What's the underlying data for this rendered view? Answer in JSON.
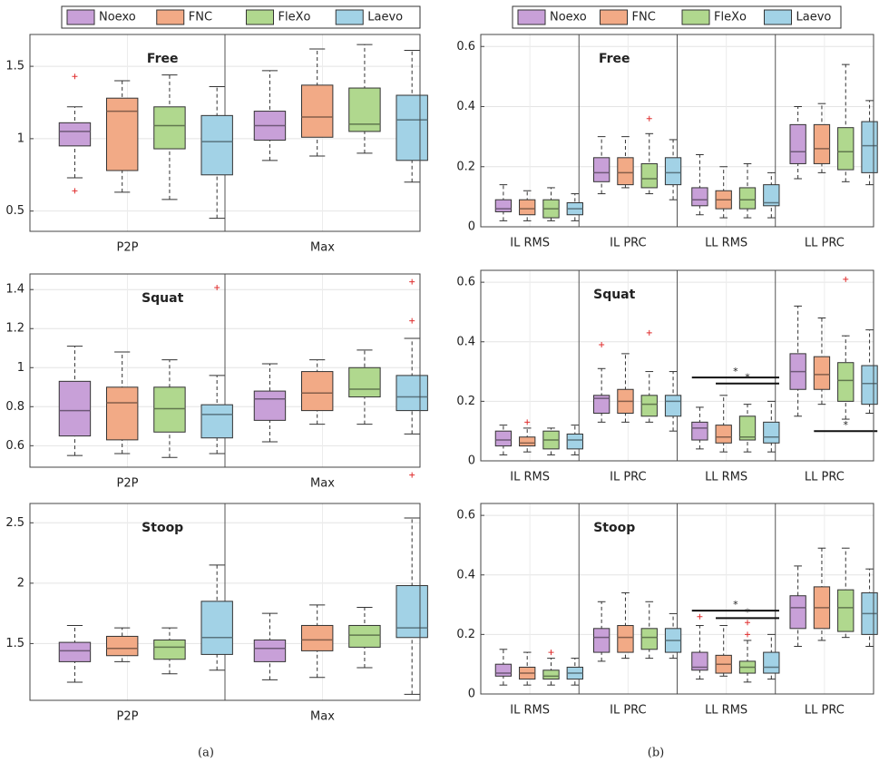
{
  "chart_data": [
    {
      "type": "box",
      "title": "Free",
      "categories": [
        "P2P",
        "Max"
      ],
      "ylim": [
        0.36,
        1.72
      ],
      "yticks": [
        0.5,
        1,
        1.5
      ],
      "grid": true,
      "series": [
        {
          "name": "Noexo",
          "color": "#c8a0d8",
          "boxes": [
            [
              0.73,
              0.95,
              1.05,
              1.11,
              1.22
            ],
            [
              0.85,
              0.99,
              1.09,
              1.19,
              1.47
            ]
          ],
          "fliers": [
            [
              1.43,
              0.64
            ],
            []
          ]
        },
        {
          "name": "FNC",
          "color": "#f2aa86",
          "boxes": [
            [
              0.63,
              0.78,
              1.19,
              1.28,
              1.4
            ],
            [
              0.88,
              1.01,
              1.15,
              1.37,
              1.62
            ]
          ],
          "fliers": [
            [],
            []
          ]
        },
        {
          "name": "FleXo",
          "color": "#b0d88e",
          "boxes": [
            [
              0.58,
              0.93,
              1.09,
              1.22,
              1.44
            ],
            [
              0.9,
              1.05,
              1.1,
              1.35,
              1.65
            ]
          ],
          "fliers": [
            [],
            []
          ]
        },
        {
          "name": "Laevo",
          "color": "#a2d2e6",
          "boxes": [
            [
              0.45,
              0.75,
              0.98,
              1.16,
              1.36
            ],
            [
              0.7,
              0.85,
              1.13,
              1.3,
              1.61
            ]
          ],
          "fliers": [
            [],
            []
          ]
        }
      ]
    },
    {
      "type": "box",
      "title": "Squat",
      "categories": [
        "P2P",
        "Max"
      ],
      "ylim": [
        0.49,
        1.48
      ],
      "yticks": [
        0.6,
        0.8,
        1,
        1.2,
        1.4
      ],
      "grid": true,
      "series": [
        {
          "color": "#c8a0d8",
          "boxes": [
            [
              0.55,
              0.65,
              0.78,
              0.93,
              1.11
            ],
            [
              0.62,
              0.73,
              0.84,
              0.88,
              1.02
            ]
          ],
          "fliers": [
            [],
            []
          ]
        },
        {
          "color": "#f2aa86",
          "boxes": [
            [
              0.56,
              0.63,
              0.82,
              0.9,
              1.08
            ],
            [
              0.71,
              0.78,
              0.87,
              0.98,
              1.04
            ]
          ],
          "fliers": [
            [],
            []
          ]
        },
        {
          "color": "#b0d88e",
          "boxes": [
            [
              0.54,
              0.67,
              0.79,
              0.9,
              1.04
            ],
            [
              0.71,
              0.85,
              0.89,
              1.0,
              1.09
            ]
          ],
          "fliers": [
            [],
            []
          ]
        },
        {
          "color": "#a2d2e6",
          "boxes": [
            [
              0.56,
              0.64,
              0.76,
              0.81,
              0.96
            ],
            [
              0.66,
              0.78,
              0.85,
              0.96,
              1.15
            ]
          ],
          "fliers": [
            [
              1.41
            ],
            [
              1.44,
              1.24,
              0.45
            ]
          ]
        }
      ]
    },
    {
      "type": "box",
      "title": "Stoop",
      "categories": [
        "P2P",
        "Max"
      ],
      "ylim": [
        1.03,
        2.66
      ],
      "yticks": [
        1.5,
        2,
        2.5
      ],
      "grid": true,
      "series": [
        {
          "color": "#c8a0d8",
          "boxes": [
            [
              1.18,
              1.35,
              1.44,
              1.51,
              1.65
            ],
            [
              1.2,
              1.35,
              1.46,
              1.53,
              1.75
            ]
          ],
          "fliers": [
            [],
            []
          ]
        },
        {
          "color": "#f2aa86",
          "boxes": [
            [
              1.35,
              1.4,
              1.46,
              1.56,
              1.63
            ],
            [
              1.22,
              1.44,
              1.53,
              1.65,
              1.82
            ]
          ],
          "fliers": [
            [],
            []
          ]
        },
        {
          "color": "#b0d88e",
          "boxes": [
            [
              1.25,
              1.37,
              1.47,
              1.53,
              1.63
            ],
            [
              1.3,
              1.47,
              1.57,
              1.65,
              1.8
            ]
          ],
          "fliers": [
            [],
            []
          ]
        },
        {
          "color": "#a2d2e6",
          "boxes": [
            [
              1.28,
              1.41,
              1.55,
              1.85,
              2.15
            ],
            [
              1.08,
              1.55,
              1.63,
              1.98,
              2.54
            ]
          ],
          "fliers": [
            [],
            []
          ]
        }
      ]
    },
    {
      "type": "box",
      "title": "Free",
      "categories": [
        "IL RMS",
        "IL PRC",
        "LL RMS",
        "LL PRC"
      ],
      "ylim": [
        0,
        0.64
      ],
      "yticks": [
        0,
        0.2,
        0.4,
        0.6
      ],
      "grid": true,
      "series": [
        {
          "name": "Noexo",
          "color": "#c8a0d8",
          "boxes": [
            [
              0.02,
              0.05,
              0.06,
              0.09,
              0.14
            ],
            [
              0.11,
              0.15,
              0.18,
              0.23,
              0.3
            ],
            [
              0.04,
              0.07,
              0.09,
              0.13,
              0.24
            ],
            [
              0.16,
              0.21,
              0.25,
              0.34,
              0.4
            ]
          ],
          "fliers": [
            [],
            [],
            [],
            []
          ]
        },
        {
          "name": "FNC",
          "color": "#f2aa86",
          "boxes": [
            [
              0.02,
              0.04,
              0.06,
              0.09,
              0.12
            ],
            [
              0.13,
              0.14,
              0.18,
              0.23,
              0.3
            ],
            [
              0.03,
              0.06,
              0.09,
              0.12,
              0.2
            ],
            [
              0.18,
              0.21,
              0.26,
              0.34,
              0.41
            ]
          ],
          "fliers": [
            [],
            [],
            [],
            []
          ]
        },
        {
          "name": "FleXo",
          "color": "#b0d88e",
          "boxes": [
            [
              0.02,
              0.03,
              0.06,
              0.09,
              0.13
            ],
            [
              0.11,
              0.13,
              0.16,
              0.21,
              0.31
            ],
            [
              0.03,
              0.06,
              0.09,
              0.13,
              0.21
            ],
            [
              0.15,
              0.19,
              0.25,
              0.33,
              0.54
            ]
          ],
          "fliers": [
            [],
            [
              0.36
            ],
            [],
            []
          ]
        },
        {
          "name": "Laevo",
          "color": "#a2d2e6",
          "boxes": [
            [
              0.02,
              0.04,
              0.06,
              0.08,
              0.11
            ],
            [
              0.09,
              0.14,
              0.18,
              0.23,
              0.29
            ],
            [
              0.03,
              0.07,
              0.08,
              0.14,
              0.18
            ],
            [
              0.14,
              0.18,
              0.27,
              0.35,
              0.42
            ]
          ],
          "fliers": [
            [],
            [],
            [],
            []
          ]
        }
      ]
    },
    {
      "type": "box",
      "title": "Squat",
      "categories": [
        "IL RMS",
        "IL PRC",
        "LL RMS",
        "LL PRC"
      ],
      "ylim": [
        0,
        0.64
      ],
      "yticks": [
        0,
        0.2,
        0.4,
        0.6
      ],
      "grid": true,
      "series": [
        {
          "color": "#c8a0d8",
          "boxes": [
            [
              0.02,
              0.05,
              0.07,
              0.1,
              0.12
            ],
            [
              0.13,
              0.16,
              0.21,
              0.22,
              0.31
            ],
            [
              0.04,
              0.07,
              0.11,
              0.13,
              0.18
            ],
            [
              0.15,
              0.24,
              0.3,
              0.36,
              0.52
            ]
          ],
          "fliers": [
            [],
            [
              0.39
            ],
            [],
            []
          ]
        },
        {
          "color": "#f2aa86",
          "boxes": [
            [
              0.03,
              0.05,
              0.06,
              0.08,
              0.11
            ],
            [
              0.13,
              0.16,
              0.2,
              0.24,
              0.36
            ],
            [
              0.03,
              0.06,
              0.08,
              0.12,
              0.22
            ],
            [
              0.19,
              0.24,
              0.29,
              0.35,
              0.48
            ]
          ],
          "fliers": [
            [
              0.13
            ],
            [],
            [],
            []
          ]
        },
        {
          "color": "#b0d88e",
          "boxes": [
            [
              0.02,
              0.04,
              0.07,
              0.1,
              0.11
            ],
            [
              0.13,
              0.15,
              0.19,
              0.22,
              0.3
            ],
            [
              0.03,
              0.07,
              0.08,
              0.15,
              0.19
            ],
            [
              0.14,
              0.2,
              0.27,
              0.33,
              0.42
            ]
          ],
          "fliers": [
            [],
            [
              0.43
            ],
            [],
            [
              0.61
            ]
          ]
        },
        {
          "color": "#a2d2e6",
          "boxes": [
            [
              0.02,
              0.04,
              0.07,
              0.09,
              0.12
            ],
            [
              0.1,
              0.15,
              0.2,
              0.22,
              0.3
            ],
            [
              0.03,
              0.06,
              0.08,
              0.13,
              0.2
            ],
            [
              0.16,
              0.19,
              0.26,
              0.32,
              0.44
            ]
          ],
          "fliers": [
            [],
            [],
            [],
            []
          ]
        }
      ],
      "annotations": [
        {
          "label": "*",
          "category": 2,
          "from": 0,
          "to": 3,
          "y": 0.28
        },
        {
          "label": "*",
          "category": 2,
          "from": 1,
          "to": 3,
          "y": 0.26
        },
        {
          "label": "*",
          "category": 3,
          "from": 1,
          "to": 3,
          "y": 0.1
        }
      ]
    },
    {
      "type": "box",
      "title": "Stoop",
      "categories": [
        "IL RMS",
        "IL PRC",
        "LL RMS",
        "LL PRC"
      ],
      "ylim": [
        0,
        0.64
      ],
      "yticks": [
        0,
        0.2,
        0.4,
        0.6
      ],
      "grid": true,
      "series": [
        {
          "color": "#c8a0d8",
          "boxes": [
            [
              0.03,
              0.06,
              0.07,
              0.1,
              0.15
            ],
            [
              0.11,
              0.14,
              0.19,
              0.22,
              0.31
            ],
            [
              0.05,
              0.08,
              0.09,
              0.14,
              0.23
            ],
            [
              0.16,
              0.22,
              0.29,
              0.33,
              0.43
            ]
          ],
          "fliers": [
            [],
            [],
            [
              0.26
            ],
            []
          ]
        },
        {
          "color": "#f2aa86",
          "boxes": [
            [
              0.03,
              0.05,
              0.07,
              0.09,
              0.14
            ],
            [
              0.12,
              0.14,
              0.19,
              0.23,
              0.34
            ],
            [
              0.06,
              0.07,
              0.1,
              0.13,
              0.23
            ],
            [
              0.18,
              0.22,
              0.29,
              0.36,
              0.49
            ]
          ],
          "fliers": [
            [],
            [],
            [],
            []
          ]
        },
        {
          "color": "#b0d88e",
          "boxes": [
            [
              0.03,
              0.05,
              0.06,
              0.08,
              0.12
            ],
            [
              0.12,
              0.15,
              0.19,
              0.22,
              0.31
            ],
            [
              0.04,
              0.07,
              0.09,
              0.11,
              0.18
            ],
            [
              0.19,
              0.21,
              0.29,
              0.35,
              0.49
            ]
          ],
          "fliers": [
            [
              0.14
            ],
            [],
            [
              0.2,
              0.24
            ],
            []
          ]
        },
        {
          "color": "#a2d2e6",
          "boxes": [
            [
              0.03,
              0.05,
              0.07,
              0.09,
              0.12
            ],
            [
              0.12,
              0.14,
              0.18,
              0.22,
              0.27
            ],
            [
              0.05,
              0.07,
              0.09,
              0.14,
              0.2
            ],
            [
              0.16,
              0.2,
              0.27,
              0.34,
              0.42
            ]
          ],
          "fliers": [
            [],
            [],
            [],
            []
          ]
        }
      ],
      "annotations": [
        {
          "label": "*",
          "category": 2,
          "from": 0,
          "to": 3,
          "y": 0.28
        },
        {
          "label": "*",
          "category": 2,
          "from": 1,
          "to": 3,
          "y": 0.255
        }
      ]
    }
  ],
  "captions": [
    "(a)",
    "(b)"
  ]
}
